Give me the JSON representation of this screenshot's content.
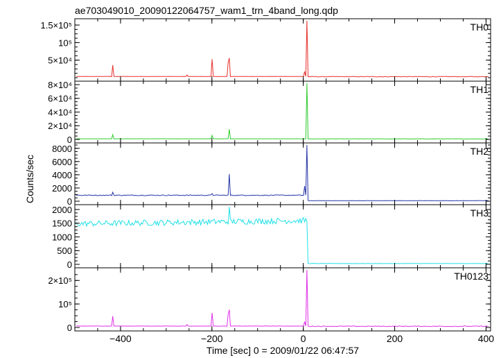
{
  "title": "ae703049010_20090122064757_wam1_trn_4band_long.qdp",
  "xlabel": "Time [sec] 0 = 2009/01/22 06:47:57",
  "ylabel": "Counts/sec",
  "chart_data": [
    {
      "type": "line",
      "name": "TH0",
      "color": "#e8302c",
      "xlim": [
        -500,
        410
      ],
      "ylim": [
        0,
        162000
      ],
      "ytick_labels": [
        "5×10⁴",
        "10⁵",
        "1.5×10⁵"
      ],
      "ytick_values": [
        50000,
        100000,
        150000
      ],
      "baseline": 3500,
      "spikes": [
        {
          "x": -418,
          "y": 36000
        },
        {
          "x": -255,
          "y": 8000
        },
        {
          "x": -200,
          "y": 53000
        },
        {
          "x": -165,
          "y": 42000
        },
        {
          "x": -162,
          "y": 56000
        },
        {
          "x": 3,
          "y": 18000
        },
        {
          "x": 8,
          "y": 162000
        }
      ],
      "x_step": 2.5
    },
    {
      "type": "line",
      "name": "TH1",
      "color": "#2ecc2e",
      "xlim": [
        -500,
        410
      ],
      "ylim": [
        0,
        82000
      ],
      "ytick_labels": [
        "0",
        "2×10⁴",
        "4×10⁴",
        "6×10⁴",
        "8×10⁴"
      ],
      "ytick_values": [
        0,
        20000,
        40000,
        60000,
        80000
      ],
      "baseline": 1000,
      "spikes": [
        {
          "x": -418,
          "y": 7000
        },
        {
          "x": -200,
          "y": 6000
        },
        {
          "x": -162,
          "y": 15000
        },
        {
          "x": 8,
          "y": 82000
        }
      ],
      "x_step": 2.5
    },
    {
      "type": "line",
      "name": "TH2",
      "color": "#2535a8",
      "xlim": [
        -500,
        410
      ],
      "ylim": [
        0,
        8500
      ],
      "ytick_labels": [
        "0",
        "2000",
        "4000",
        "6000",
        "8000"
      ],
      "ytick_values": [
        0,
        2000,
        4000,
        6000,
        8000
      ],
      "baseline": 900,
      "post_level": 80,
      "spikes": [
        {
          "x": -418,
          "y": 1350
        },
        {
          "x": -200,
          "y": 1150
        },
        {
          "x": -162,
          "y": 4100
        },
        {
          "x": 3,
          "y": 2300
        },
        {
          "x": 8,
          "y": 8500
        }
      ],
      "x_step": 2.5
    },
    {
      "type": "line",
      "name": "TH3",
      "color": "#22e0e8",
      "xlim": [
        -500,
        410
      ],
      "ylim": [
        0,
        2100
      ],
      "ytick_labels": [
        "0",
        "500",
        "1000",
        "1500",
        "2000"
      ],
      "ytick_values": [
        0,
        500,
        1000,
        1500,
        2000
      ],
      "baseline": 1480,
      "baseline_end": 1600,
      "post_level": 30,
      "spikes": [
        {
          "x": -162,
          "y": 2100
        }
      ],
      "x_step": 2.5
    },
    {
      "type": "line",
      "name": "TH0123",
      "color": "#e030e8",
      "xlim": [
        -500,
        410
      ],
      "ylim": [
        0,
        245000
      ],
      "ytick_labels": [
        "0",
        "10⁵",
        "2×10⁵"
      ],
      "ytick_values": [
        0,
        100000,
        200000
      ],
      "baseline": 6000,
      "spikes": [
        {
          "x": -418,
          "y": 48000
        },
        {
          "x": -255,
          "y": 12000
        },
        {
          "x": -200,
          "y": 62000
        },
        {
          "x": -165,
          "y": 54000
        },
        {
          "x": -162,
          "y": 76000
        },
        {
          "x": 3,
          "y": 25000
        },
        {
          "x": 8,
          "y": 245000
        }
      ],
      "x_step": 2.5
    }
  ],
  "x_ticks": {
    "values": [
      -400,
      -200,
      0,
      200,
      400
    ],
    "labels": [
      "−400",
      "−200",
      "0",
      "200",
      "400"
    ],
    "minor_step": 50
  }
}
